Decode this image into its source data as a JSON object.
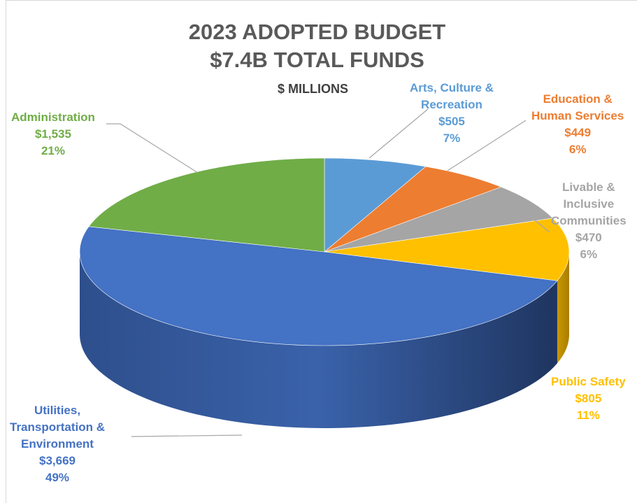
{
  "title": "2023 ADOPTED BUDGET",
  "subtitle": "$7.4B TOTAL FUNDS",
  "units": "$ MILLIONS",
  "colors": {
    "arts": "#5b9bd5",
    "education": "#ed7d31",
    "livable": "#a5a5a5",
    "public_safety": "#ffc000",
    "utilities": "#4472c4",
    "administration": "#70ad47"
  },
  "chart_data": {
    "type": "pie",
    "title": "2023 ADOPTED BUDGET",
    "subtitle": "$7.4B TOTAL FUNDS",
    "units": "$ MILLIONS",
    "slices": [
      {
        "key": "arts",
        "label": "Arts, Culture & Recreation",
        "value": 505,
        "value_label": "$505",
        "pct_label": "7%",
        "color": "#5b9bd5"
      },
      {
        "key": "education",
        "label": "Education & Human Services",
        "value": 449,
        "value_label": "$449",
        "pct_label": "6%",
        "color": "#ed7d31"
      },
      {
        "key": "livable",
        "label": "Livable & Inclusive Communities",
        "value": 470,
        "value_label": "$470",
        "pct_label": "6%",
        "color": "#a5a5a5"
      },
      {
        "key": "public_safety",
        "label": "Public Safety",
        "value": 805,
        "value_label": "$805",
        "pct_label": "11%",
        "color": "#ffc000"
      },
      {
        "key": "utilities",
        "label": "Utilities, Transportation & Environment",
        "value": 3669,
        "value_label": "$3,669",
        "pct_label": "49%",
        "color": "#4472c4"
      },
      {
        "key": "administration",
        "label": "Administration",
        "value": 1535,
        "value_label": "$1,535",
        "pct_label": "21%",
        "color": "#70ad47"
      }
    ]
  },
  "labels": {
    "arts": {
      "l1": "Arts, Culture &",
      "l2": "Recreation",
      "value": "$505",
      "pct": "7%"
    },
    "education": {
      "l1": "Education &",
      "l2": "Human Services",
      "value": "$449",
      "pct": "6%"
    },
    "livable": {
      "l1": "Livable &",
      "l2": "Inclusive",
      "l3": "Communities",
      "value": "$470",
      "pct": "6%"
    },
    "public_safety": {
      "l1": "Public Safety",
      "value": "$805",
      "pct": "11%"
    },
    "utilities": {
      "l1": "Utilities,",
      "l2": "Transportation &",
      "l3": "Environment",
      "value": "$3,669",
      "pct": "49%"
    },
    "administration": {
      "l1": "Administration",
      "value": "$1,535",
      "pct": "21%"
    }
  }
}
